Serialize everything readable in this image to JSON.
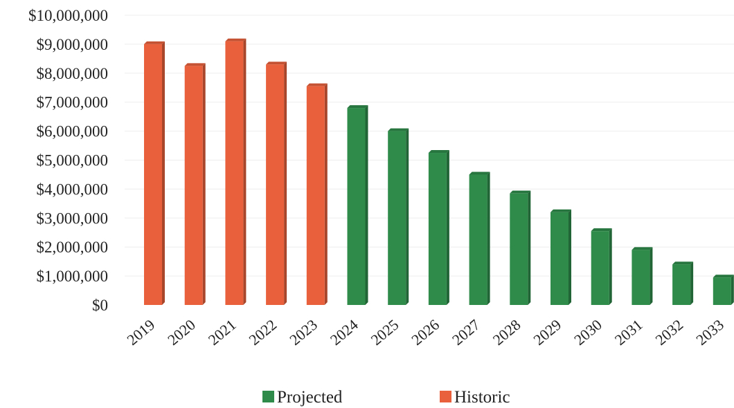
{
  "chart_data": {
    "type": "bar",
    "categories": [
      "2019",
      "2020",
      "2021",
      "2022",
      "2023",
      "2024",
      "2025",
      "2026",
      "2027",
      "2028",
      "2029",
      "2030",
      "2031",
      "2032",
      "2033"
    ],
    "values": [
      9000000,
      8250000,
      9100000,
      8300000,
      7550000,
      6800000,
      6000000,
      5250000,
      4500000,
      3850000,
      3200000,
      2550000,
      1900000,
      1400000,
      950000
    ],
    "series_of_point": [
      "Historic",
      "Historic",
      "Historic",
      "Historic",
      "Historic",
      "Projected",
      "Projected",
      "Projected",
      "Projected",
      "Projected",
      "Projected",
      "Projected",
      "Projected",
      "Projected",
      "Projected"
    ],
    "series": [
      {
        "name": "Projected",
        "color": "#2e8b4a"
      },
      {
        "name": "Historic",
        "color": "#e8613c"
      }
    ],
    "y_ticks": [
      "$0",
      "$1,000,000",
      "$2,000,000",
      "$3,000,000",
      "$4,000,000",
      "$5,000,000",
      "$6,000,000",
      "$7,000,000",
      "$8,000,000",
      "$9,000,000",
      "$10,000,000"
    ],
    "ylim": [
      0,
      10000000
    ],
    "grid": true,
    "legend_position": "bottom",
    "title": "",
    "xlabel": "",
    "ylabel": ""
  }
}
